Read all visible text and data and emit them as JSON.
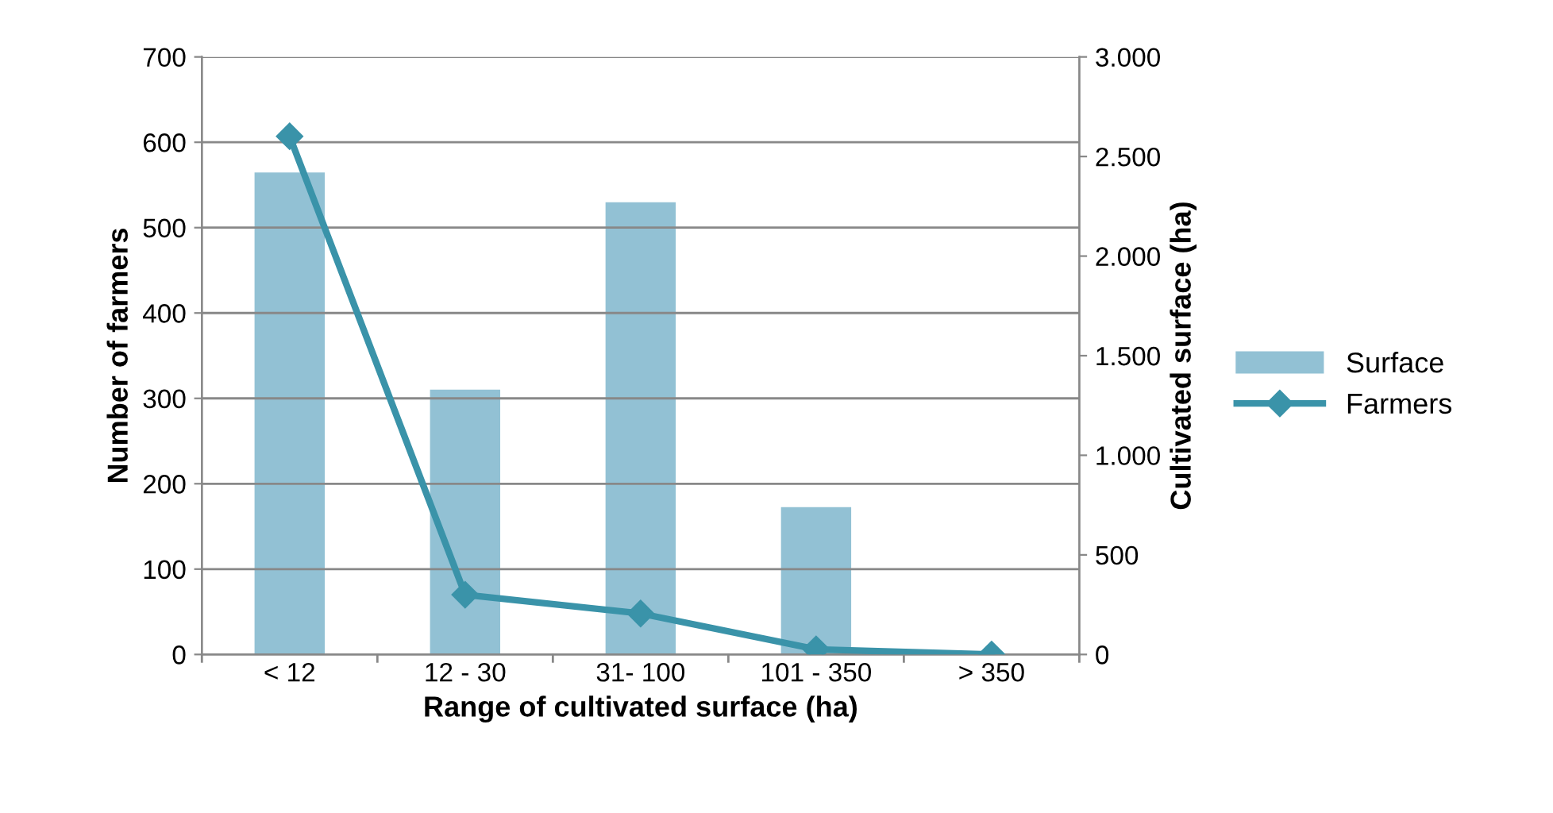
{
  "chart_data": {
    "type": "bar",
    "xlabel": "Range of cultivated surface (ha)",
    "ylabel": "Number of farmers",
    "y2label": "Cultivated surface (ha)",
    "categories": [
      "< 12",
      "12 - 30",
      "31- 100",
      "101 - 350",
      "> 350"
    ],
    "series": [
      {
        "name": "Surface",
        "axis": "y2",
        "color": "#92c1d4",
        "values": [
          2420,
          1330,
          2270,
          740,
          0
        ]
      },
      {
        "name": "Farmers",
        "type": "line",
        "axis": "y",
        "color": "#3a93a9",
        "marker": "diamond",
        "values": [
          607,
          70,
          48,
          6,
          0
        ]
      }
    ],
    "ylim": [
      0,
      700
    ],
    "yticks": [
      0,
      100,
      200,
      300,
      400,
      500,
      600,
      700
    ],
    "y2lim": [
      0,
      3000
    ],
    "y2ticks": [
      0,
      500,
      {
        "value": 1000,
        "label": "1.000"
      },
      {
        "value": 1500,
        "label": "1.500"
      },
      {
        "value": 2000,
        "label": "2.000"
      },
      {
        "value": 2500,
        "label": "2.500"
      },
      {
        "value": 3000,
        "label": "3.000"
      }
    ],
    "grid": "y",
    "legend": "right"
  }
}
